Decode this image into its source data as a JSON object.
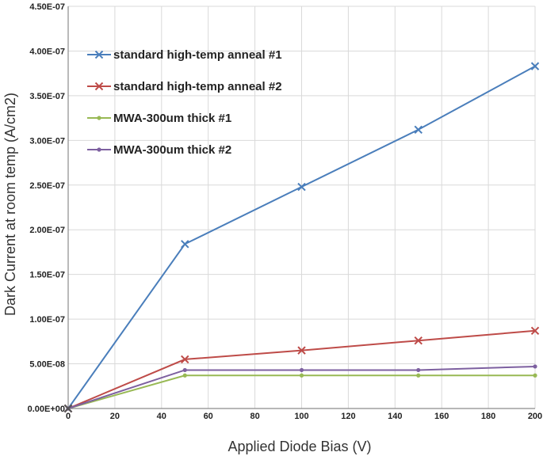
{
  "chart_data": {
    "type": "line",
    "title": "",
    "xlabel": "Applied Diode Bias (V)",
    "ylabel": "Dark Current at room temp (A/cm2)",
    "xlim": [
      0,
      200
    ],
    "ylim": [
      0,
      4.5e-07
    ],
    "x_ticks": [
      0,
      20,
      40,
      60,
      80,
      100,
      120,
      140,
      160,
      180,
      200
    ],
    "y_ticks": [
      0,
      5e-08,
      1e-07,
      1.5e-07,
      2e-07,
      2.5e-07,
      3e-07,
      3.5e-07,
      4e-07,
      4.5e-07
    ],
    "x_tick_labels": [
      "0",
      "20",
      "40",
      "60",
      "80",
      "100",
      "120",
      "140",
      "160",
      "180",
      "200"
    ],
    "y_tick_labels": [
      "0.00E+00",
      "5.00E-08",
      "1.00E-07",
      "1.50E-07",
      "2.00E-07",
      "2.50E-07",
      "3.00E-07",
      "3.50E-07",
      "4.00E-07",
      "4.50E-07"
    ],
    "grid": true,
    "legend_position": "top-left",
    "x": [
      0,
      50,
      100,
      150,
      200
    ],
    "series": [
      {
        "name": "standard high-temp anneal #1",
        "color": "#4a7ebb",
        "marker": "x",
        "values": [
          0,
          1.84e-07,
          2.48e-07,
          3.12e-07,
          3.83e-07
        ]
      },
      {
        "name": "standard high-temp anneal #2",
        "color": "#be4b48",
        "marker": "x",
        "values": [
          0,
          5.5e-08,
          6.5e-08,
          7.6e-08,
          8.7e-08
        ]
      },
      {
        "name": "MWA-300um thick #1",
        "color": "#98b954",
        "marker": "dot",
        "values": [
          0,
          3.7e-08,
          3.7e-08,
          3.7e-08,
          3.7e-08
        ]
      },
      {
        "name": "MWA-300um thick #2",
        "color": "#7d60a0",
        "marker": "dot",
        "values": [
          0,
          4.3e-08,
          4.3e-08,
          4.3e-08,
          4.7e-08
        ]
      }
    ]
  }
}
